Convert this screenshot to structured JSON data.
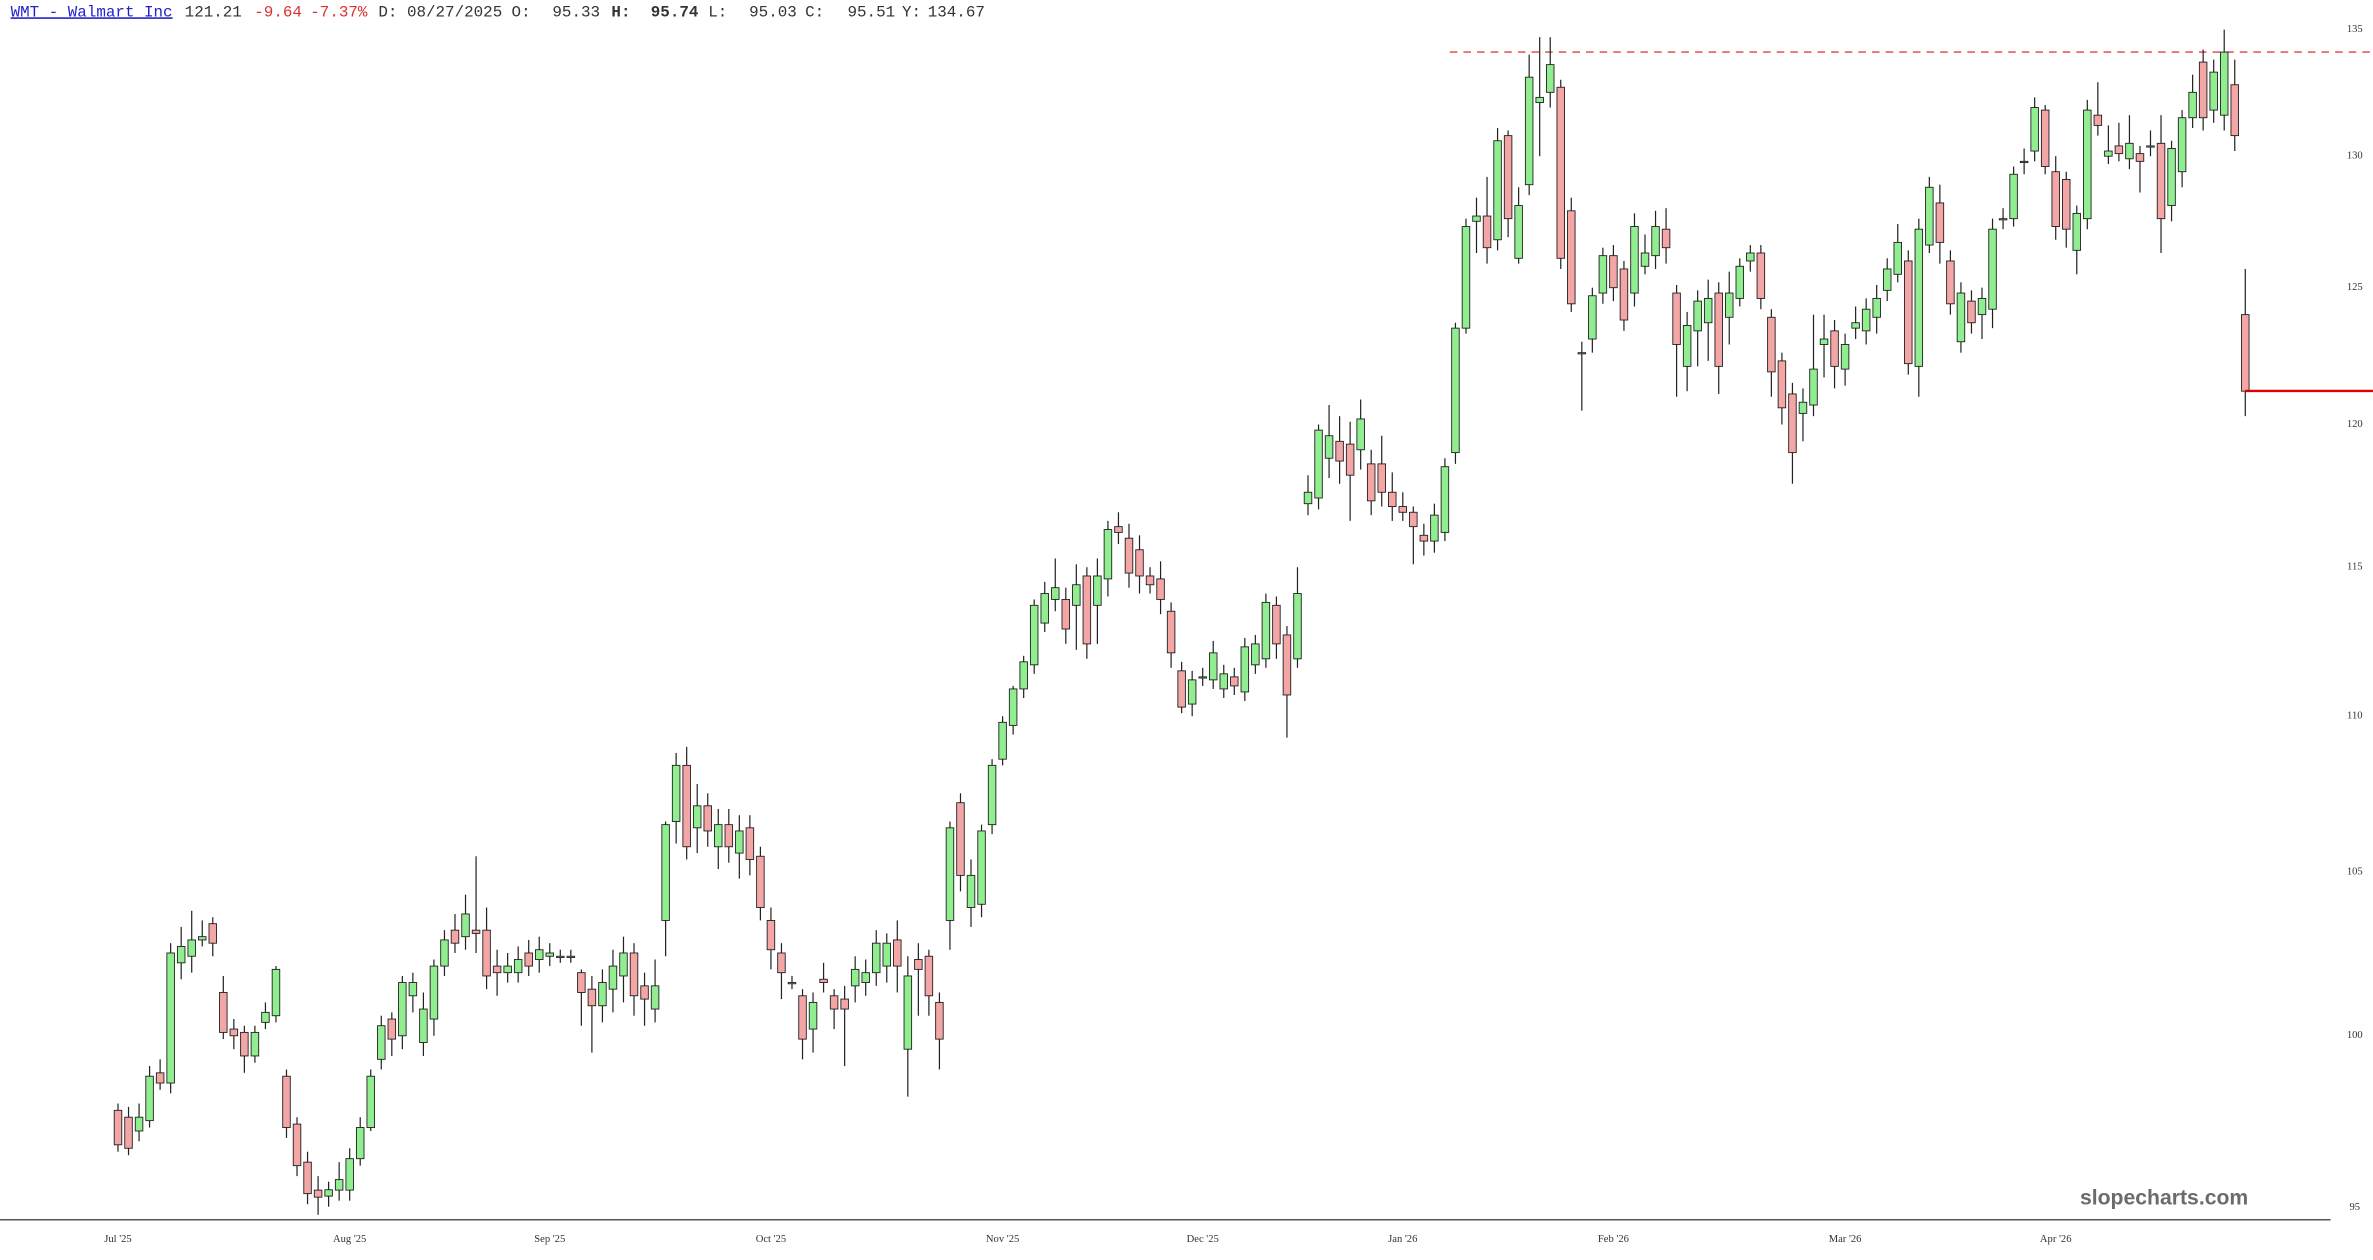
{
  "chart_data": {
    "type": "candlestick",
    "header": {
      "symbol": "WMT - Walmart Inc",
      "last": 121.21,
      "change": "-9.64",
      "change_pct": "-7.37%",
      "date": "D: 08/27/2025",
      "fields": [
        {
          "label": "O:",
          "value": "95.33"
        },
        {
          "label": "H:",
          "value": "95.74"
        },
        {
          "label": "L:",
          "value": "95.03"
        },
        {
          "label": "C:",
          "value": "95.51"
        },
        {
          "label": "Y:",
          "value": "134.67"
        }
      ]
    },
    "watermark": "slopecharts.com",
    "log_scale": true,
    "grid": false,
    "up_color": "#90ee90",
    "down_color": "#f4a6a6",
    "last_line_color": "#dd0000",
    "hline_dashed": {
      "value": 134.1,
      "color": "#e04040"
    },
    "ylim": [
      94.66,
      136.2
    ],
    "yticks": [
      95,
      100,
      105,
      110,
      115,
      120,
      125,
      130,
      135
    ],
    "xlim": [
      -11.2,
      210.1
    ],
    "xticks": [
      {
        "value": 0,
        "label": "Jul '25"
      },
      {
        "value": 22,
        "label": "Aug '25"
      },
      {
        "value": 41,
        "label": "Sep '25"
      },
      {
        "value": 62,
        "label": "Oct '25"
      },
      {
        "value": 84,
        "label": "Nov '25"
      },
      {
        "value": 103,
        "label": "Dec '25"
      },
      {
        "value": 122,
        "label": "Jan '26"
      },
      {
        "value": 142,
        "label": "Feb '26"
      },
      {
        "value": 164,
        "label": "Mar '26"
      },
      {
        "value": 184,
        "label": "Apr '26"
      }
    ],
    "ohlc": [
      [
        97.8,
        98.0,
        96.6,
        96.8
      ],
      [
        97.6,
        97.9,
        96.5,
        96.7
      ],
      [
        97.2,
        98.0,
        96.9,
        97.6
      ],
      [
        97.5,
        99.1,
        97.3,
        98.8
      ],
      [
        98.9,
        99.3,
        98.4,
        98.6
      ],
      [
        98.6,
        102.8,
        98.3,
        102.5
      ],
      [
        102.2,
        103.3,
        101.7,
        102.7
      ],
      [
        102.4,
        103.8,
        101.9,
        102.9
      ],
      [
        102.9,
        103.5,
        102.7,
        103.0
      ],
      [
        103.4,
        103.6,
        102.4,
        102.8
      ],
      [
        101.3,
        101.8,
        99.9,
        100.1
      ],
      [
        100.2,
        100.5,
        99.6,
        100.0
      ],
      [
        100.1,
        100.3,
        98.9,
        99.4
      ],
      [
        99.4,
        100.3,
        99.2,
        100.1
      ],
      [
        100.4,
        101.0,
        100.2,
        100.7
      ],
      [
        100.6,
        102.1,
        100.4,
        102.0
      ],
      [
        98.8,
        99.0,
        97.0,
        97.3
      ],
      [
        97.4,
        97.6,
        95.9,
        96.2
      ],
      [
        96.3,
        96.6,
        95.1,
        95.4
      ],
      [
        95.5,
        95.9,
        94.8,
        95.3
      ],
      [
        95.33,
        95.74,
        95.03,
        95.51
      ],
      [
        95.5,
        96.3,
        95.2,
        95.8
      ],
      [
        95.5,
        96.7,
        95.2,
        96.4
      ],
      [
        96.4,
        97.6,
        96.2,
        97.3
      ],
      [
        97.3,
        99.0,
        97.2,
        98.8
      ],
      [
        99.3,
        100.6,
        99.0,
        100.3
      ],
      [
        100.5,
        100.7,
        99.4,
        99.9
      ],
      [
        100.0,
        101.8,
        99.6,
        101.6
      ],
      [
        101.2,
        101.9,
        100.7,
        101.6
      ],
      [
        99.8,
        101.3,
        99.4,
        100.8
      ],
      [
        100.5,
        102.3,
        100.0,
        102.1
      ],
      [
        102.1,
        103.2,
        101.8,
        102.9
      ],
      [
        103.2,
        103.7,
        102.5,
        102.8
      ],
      [
        103.0,
        104.3,
        102.6,
        103.7
      ],
      [
        103.2,
        105.5,
        102.5,
        103.1
      ],
      [
        103.2,
        103.9,
        101.4,
        101.8
      ],
      [
        102.1,
        102.6,
        101.2,
        101.9
      ],
      [
        101.9,
        102.5,
        101.6,
        102.1
      ],
      [
        101.9,
        102.7,
        101.6,
        102.3
      ],
      [
        102.5,
        102.9,
        101.8,
        102.1
      ],
      [
        102.3,
        103.0,
        101.9,
        102.6
      ],
      [
        102.4,
        102.8,
        102.1,
        102.5
      ],
      [
        102.4,
        102.6,
        102.2,
        102.4
      ],
      [
        102.4,
        102.6,
        102.2,
        102.4
      ],
      [
        101.9,
        102.0,
        100.3,
        101.3
      ],
      [
        101.4,
        101.8,
        99.5,
        100.9
      ],
      [
        100.9,
        102.0,
        100.4,
        101.6
      ],
      [
        101.4,
        102.6,
        100.7,
        102.1
      ],
      [
        101.8,
        103.0,
        101.0,
        102.5
      ],
      [
        102.5,
        102.8,
        100.6,
        101.2
      ],
      [
        101.5,
        101.9,
        100.3,
        101.1
      ],
      [
        100.8,
        102.3,
        100.4,
        101.5
      ],
      [
        103.5,
        106.6,
        102.4,
        106.5
      ],
      [
        106.6,
        108.8,
        105.9,
        108.4
      ],
      [
        108.4,
        109.0,
        105.4,
        105.8
      ],
      [
        106.4,
        107.8,
        105.6,
        107.1
      ],
      [
        107.1,
        107.5,
        105.8,
        106.3
      ],
      [
        105.8,
        107.0,
        105.1,
        106.5
      ],
      [
        106.5,
        107.0,
        105.3,
        105.8
      ],
      [
        105.6,
        106.8,
        104.8,
        106.3
      ],
      [
        106.4,
        106.8,
        104.9,
        105.4
      ],
      [
        105.5,
        105.8,
        103.5,
        103.9
      ],
      [
        103.5,
        103.9,
        102.0,
        102.6
      ],
      [
        102.5,
        102.8,
        101.1,
        101.9
      ],
      [
        101.6,
        101.8,
        101.4,
        101.6
      ],
      [
        101.2,
        101.4,
        99.3,
        99.9
      ],
      [
        100.2,
        101.3,
        99.5,
        101.0
      ],
      [
        101.7,
        102.2,
        101.3,
        101.6
      ],
      [
        101.2,
        101.4,
        100.2,
        100.8
      ],
      [
        101.1,
        101.5,
        99.1,
        100.8
      ],
      [
        101.5,
        102.4,
        101.0,
        102.0
      ],
      [
        101.6,
        102.3,
        101.2,
        101.9
      ],
      [
        101.9,
        103.2,
        101.5,
        102.8
      ],
      [
        102.1,
        103.1,
        101.6,
        102.8
      ],
      [
        102.9,
        103.5,
        101.3,
        102.1
      ],
      [
        99.6,
        102.4,
        98.2,
        101.8
      ],
      [
        102.3,
        102.8,
        100.6,
        102.0
      ],
      [
        102.4,
        102.6,
        100.6,
        101.2
      ],
      [
        101.0,
        101.3,
        99.0,
        99.9
      ],
      [
        103.5,
        106.6,
        102.6,
        106.4
      ],
      [
        107.2,
        107.5,
        104.4,
        104.9
      ],
      [
        103.9,
        105.4,
        103.3,
        104.9
      ],
      [
        104.0,
        106.5,
        103.6,
        106.3
      ],
      [
        106.5,
        108.6,
        106.2,
        108.4
      ],
      [
        108.6,
        110.0,
        108.4,
        109.8
      ],
      [
        109.7,
        111.0,
        109.4,
        110.9
      ],
      [
        110.9,
        112.0,
        110.6,
        111.8
      ],
      [
        111.7,
        113.9,
        111.4,
        113.7
      ],
      [
        113.1,
        114.5,
        112.8,
        114.1
      ],
      [
        113.9,
        115.3,
        113.5,
        114.3
      ],
      [
        113.9,
        114.3,
        112.4,
        112.9
      ],
      [
        113.7,
        115.1,
        112.2,
        114.4
      ],
      [
        114.7,
        115.0,
        111.9,
        112.4
      ],
      [
        113.7,
        115.3,
        112.4,
        114.7
      ],
      [
        114.6,
        116.6,
        114.0,
        116.3
      ],
      [
        116.4,
        116.9,
        115.8,
        116.2
      ],
      [
        116.0,
        116.5,
        114.3,
        114.8
      ],
      [
        115.6,
        116.1,
        114.1,
        114.7
      ],
      [
        114.7,
        115.0,
        114.1,
        114.4
      ],
      [
        114.6,
        115.2,
        113.4,
        113.9
      ],
      [
        113.5,
        113.8,
        111.6,
        112.1
      ],
      [
        111.5,
        111.8,
        110.1,
        110.3
      ],
      [
        110.4,
        111.5,
        110.0,
        111.2
      ],
      [
        111.3,
        111.6,
        111.0,
        111.3
      ],
      [
        111.2,
        112.5,
        110.9,
        112.1
      ],
      [
        110.9,
        111.7,
        110.6,
        111.4
      ],
      [
        111.3,
        111.6,
        110.7,
        111.0
      ],
      [
        110.8,
        112.6,
        110.5,
        112.3
      ],
      [
        111.7,
        112.7,
        111.4,
        112.4
      ],
      [
        111.9,
        114.1,
        111.6,
        113.8
      ],
      [
        113.7,
        114.0,
        111.9,
        112.4
      ],
      [
        112.7,
        113.0,
        109.3,
        110.7
      ],
      [
        111.9,
        115.0,
        111.6,
        114.1
      ],
      [
        117.2,
        118.2,
        116.8,
        117.6
      ],
      [
        117.4,
        120.0,
        117.0,
        119.8
      ],
      [
        118.8,
        120.7,
        118.1,
        119.6
      ],
      [
        119.4,
        120.3,
        117.9,
        118.7
      ],
      [
        119.3,
        120.1,
        116.6,
        118.2
      ],
      [
        119.1,
        120.9,
        118.4,
        120.2
      ],
      [
        118.6,
        119.1,
        116.8,
        117.3
      ],
      [
        118.6,
        119.6,
        117.1,
        117.6
      ],
      [
        117.6,
        118.3,
        116.6,
        117.1
      ],
      [
        117.1,
        117.6,
        116.6,
        116.9
      ],
      [
        116.9,
        117.1,
        115.1,
        116.4
      ],
      [
        116.1,
        116.5,
        115.4,
        115.9
      ],
      [
        115.9,
        117.2,
        115.5,
        116.8
      ],
      [
        116.2,
        118.8,
        115.9,
        118.5
      ],
      [
        119.0,
        123.7,
        118.6,
        123.5
      ],
      [
        123.5,
        127.6,
        123.3,
        127.3
      ],
      [
        127.5,
        128.4,
        126.3,
        127.7
      ],
      [
        127.7,
        129.2,
        125.9,
        126.5
      ],
      [
        126.8,
        131.1,
        126.4,
        130.6
      ],
      [
        130.8,
        131.0,
        126.9,
        127.6
      ],
      [
        126.1,
        128.8,
        125.9,
        128.1
      ],
      [
        128.9,
        134.0,
        128.5,
        133.1
      ],
      [
        132.1,
        134.7,
        130.0,
        132.3
      ],
      [
        132.5,
        134.7,
        131.9,
        133.6
      ],
      [
        132.7,
        133.0,
        125.7,
        126.1
      ],
      [
        127.9,
        128.4,
        124.1,
        124.4
      ],
      [
        122.6,
        123.0,
        120.5,
        122.6
      ],
      [
        123.1,
        125.0,
        122.6,
        124.7
      ],
      [
        124.8,
        126.5,
        124.4,
        126.2
      ],
      [
        126.2,
        126.6,
        124.5,
        125.0
      ],
      [
        125.7,
        126.0,
        123.4,
        123.8
      ],
      [
        124.8,
        127.8,
        124.3,
        127.3
      ],
      [
        125.8,
        127.0,
        125.5,
        126.3
      ],
      [
        126.2,
        127.9,
        125.7,
        127.3
      ],
      [
        127.2,
        128.0,
        125.9,
        126.5
      ],
      [
        124.8,
        125.1,
        121.0,
        122.9
      ],
      [
        122.1,
        124.1,
        121.2,
        123.6
      ],
      [
        123.4,
        124.9,
        122.1,
        124.5
      ],
      [
        123.7,
        125.3,
        122.3,
        124.6
      ],
      [
        124.8,
        125.2,
        121.1,
        122.1
      ],
      [
        123.9,
        125.6,
        122.9,
        124.8
      ],
      [
        124.6,
        126.1,
        124.3,
        125.8
      ],
      [
        126.0,
        126.6,
        125.6,
        126.3
      ],
      [
        126.3,
        126.6,
        124.2,
        124.6
      ],
      [
        123.9,
        124.2,
        121.0,
        121.9
      ],
      [
        122.3,
        122.6,
        120.0,
        120.6
      ],
      [
        121.1,
        121.5,
        117.9,
        119.0
      ],
      [
        120.4,
        121.3,
        119.4,
        120.8
      ],
      [
        120.7,
        124.0,
        120.3,
        122.0
      ],
      [
        122.9,
        124.0,
        121.7,
        123.1
      ],
      [
        123.4,
        123.8,
        121.3,
        122.1
      ],
      [
        122.0,
        123.3,
        121.4,
        122.9
      ],
      [
        123.5,
        124.3,
        123.1,
        123.7
      ],
      [
        123.4,
        124.6,
        122.9,
        124.2
      ],
      [
        123.9,
        125.1,
        123.3,
        124.6
      ],
      [
        124.9,
        126.1,
        124.5,
        125.7
      ],
      [
        125.5,
        127.4,
        125.2,
        126.7
      ],
      [
        126.0,
        126.4,
        121.8,
        122.2
      ],
      [
        122.1,
        127.6,
        121.0,
        127.2
      ],
      [
        126.6,
        129.2,
        126.3,
        128.8
      ],
      [
        128.2,
        128.9,
        125.9,
        126.7
      ],
      [
        126.0,
        126.4,
        124.0,
        124.4
      ],
      [
        123.0,
        125.2,
        122.6,
        124.8
      ],
      [
        124.5,
        124.9,
        123.3,
        123.7
      ],
      [
        124.0,
        125.0,
        123.1,
        124.6
      ],
      [
        124.2,
        127.6,
        123.5,
        127.2
      ],
      [
        127.6,
        128.0,
        127.2,
        127.6
      ],
      [
        127.6,
        129.6,
        127.3,
        129.3
      ],
      [
        129.8,
        130.3,
        129.3,
        129.8
      ],
      [
        130.2,
        132.3,
        129.8,
        131.9
      ],
      [
        131.8,
        132.0,
        129.3,
        129.6
      ],
      [
        129.4,
        130.0,
        126.8,
        127.3
      ],
      [
        129.1,
        129.4,
        126.5,
        127.2
      ],
      [
        126.4,
        128.1,
        125.5,
        127.8
      ],
      [
        127.6,
        132.2,
        127.2,
        131.8
      ],
      [
        131.6,
        132.9,
        130.8,
        131.2
      ],
      [
        130.0,
        131.2,
        129.7,
        130.2
      ],
      [
        130.4,
        131.3,
        129.8,
        130.1
      ],
      [
        129.9,
        131.6,
        129.5,
        130.5
      ],
      [
        130.1,
        130.4,
        128.6,
        129.8
      ],
      [
        130.4,
        131.0,
        130.0,
        130.4
      ],
      [
        130.5,
        131.6,
        126.3,
        127.6
      ],
      [
        128.1,
        130.6,
        127.5,
        130.3
      ],
      [
        129.4,
        131.8,
        128.8,
        131.5
      ],
      [
        131.5,
        133.2,
        131.1,
        132.5
      ],
      [
        133.7,
        134.2,
        131.0,
        131.5
      ],
      [
        131.8,
        133.8,
        131.3,
        133.3
      ],
      [
        131.6,
        135.0,
        131.0,
        134.1
      ],
      [
        132.8,
        133.8,
        130.2,
        130.8
      ],
      [
        124.0,
        125.7,
        120.3,
        121.2
      ]
    ]
  }
}
